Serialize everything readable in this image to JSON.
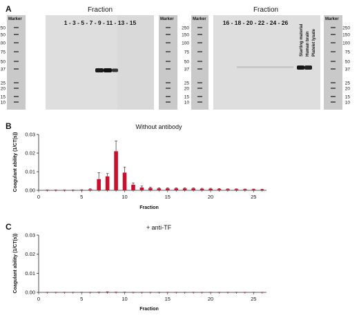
{
  "panel_a": {
    "letter": "A",
    "marker_label": "Marker",
    "left_title": "Fraction",
    "right_title": "Fraction",
    "left_lanes": "1 - 3 - 5 - 7 - 9 - 11 - 13 - 15",
    "right_lanes": "16 - 18 - 20 - 22 - 24 - 26",
    "ladder": [
      "250",
      "150",
      "100",
      "75",
      "50",
      "37",
      "25",
      "20",
      "15",
      "10"
    ],
    "extra_lanes": [
      "Starting material",
      "Human brain",
      "Platelet lysate"
    ]
  },
  "panel_b": {
    "letter": "B"
  },
  "panel_c": {
    "letter": "C"
  },
  "chart_data": [
    {
      "type": "bar",
      "title": "Without antibody",
      "xlabel": "Fraction",
      "ylabel": "Coagulant ability (1/CT(s))",
      "xlim": [
        0,
        26.5
      ],
      "ylim": [
        0,
        0.03
      ],
      "xticks": [
        "0",
        "5",
        "10",
        "15",
        "20",
        "25"
      ],
      "yticks": [
        "0.00",
        "0.01",
        "0.02",
        "0.03"
      ],
      "color": "#c8102e",
      "x": [
        1,
        2,
        3,
        4,
        5,
        6,
        7,
        8,
        9,
        10,
        11,
        12,
        13,
        14,
        15,
        16,
        17,
        18,
        19,
        20,
        21,
        22,
        23,
        24,
        25,
        26
      ],
      "values": [
        0.0001,
        0.0001,
        0.0001,
        0.0001,
        0.0002,
        0.0005,
        0.006,
        0.0075,
        0.021,
        0.0095,
        0.003,
        0.0015,
        0.0012,
        0.001,
        0.001,
        0.001,
        0.001,
        0.001,
        0.0008,
        0.0008,
        0.0007,
        0.0006,
        0.0006,
        0.0005,
        0.0005,
        0.0004
      ],
      "errors": [
        0.0001,
        0.0001,
        0.0001,
        0.0001,
        0.0001,
        0.0003,
        0.0035,
        0.0015,
        0.0055,
        0.003,
        0.001,
        0.0008,
        0.0005,
        0.0003,
        0.0003,
        0.0003,
        0.0003,
        0.0003,
        0.0003,
        0.0003,
        0.0003,
        0.0002,
        0.0002,
        0.0002,
        0.0002,
        0.0002
      ]
    },
    {
      "type": "bar",
      "title": "+ anti-TF",
      "xlabel": "Fraction",
      "ylabel": "Coagulant ability (1/CT(s))",
      "xlim": [
        0,
        26.5
      ],
      "ylim": [
        0,
        0.03
      ],
      "xticks": [
        "0",
        "5",
        "10",
        "15",
        "20",
        "25"
      ],
      "yticks": [
        "0.00",
        "0.01",
        "0.02",
        "0.03"
      ],
      "color": "#c8102e",
      "x": [
        1,
        2,
        3,
        4,
        5,
        6,
        7,
        8,
        9,
        10,
        11,
        12,
        13,
        14,
        15,
        16,
        17,
        18,
        19,
        20,
        21,
        22,
        23,
        24,
        25,
        26
      ],
      "values": [
        5e-05,
        5e-05,
        5e-05,
        5e-05,
        5e-05,
        5e-05,
        0.0001,
        0.0002,
        0.0001,
        0.0001,
        5e-05,
        5e-05,
        5e-05,
        5e-05,
        5e-05,
        5e-05,
        5e-05,
        5e-05,
        5e-05,
        5e-05,
        5e-05,
        5e-05,
        5e-05,
        5e-05,
        5e-05,
        5e-05
      ],
      "errors": [
        3e-05,
        3e-05,
        3e-05,
        3e-05,
        3e-05,
        3e-05,
        5e-05,
        0.0001,
        5e-05,
        5e-05,
        3e-05,
        3e-05,
        3e-05,
        3e-05,
        3e-05,
        3e-05,
        3e-05,
        3e-05,
        3e-05,
        3e-05,
        3e-05,
        3e-05,
        3e-05,
        3e-05,
        3e-05,
        3e-05
      ]
    }
  ]
}
